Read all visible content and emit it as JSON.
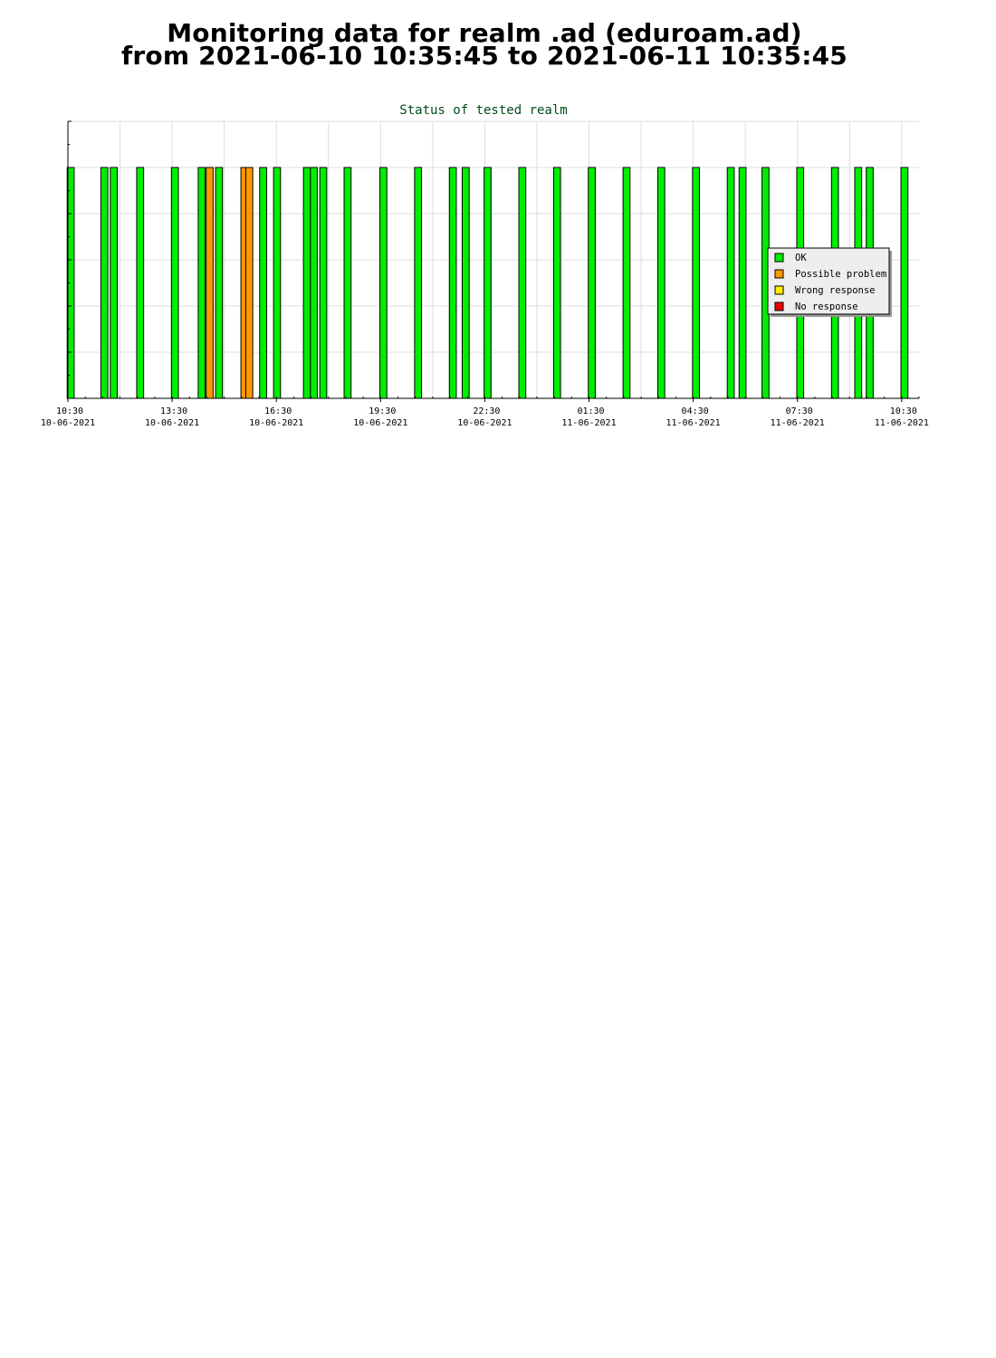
{
  "header": {
    "title_line1": "Monitoring data for realm .ad  (eduroam.ad)",
    "title_line2": "from 2021-06-10 10:35:45 to 2021-06-11 10:35:45"
  },
  "chart_data": {
    "type": "bar",
    "title": "Status of tested realm",
    "xlabel": "",
    "ylabel": "",
    "x_unit": "hours after 2021-06-10 10:30",
    "x_range": [
      0,
      24.5
    ],
    "ylim": [
      0,
      6
    ],
    "grid": true,
    "legend_position": "right",
    "x_ticks": [
      {
        "x": 0,
        "time": "10:30",
        "date": "10-06-2021"
      },
      {
        "x": 3,
        "time": "13:30",
        "date": "10-06-2021"
      },
      {
        "x": 6,
        "time": "16:30",
        "date": "10-06-2021"
      },
      {
        "x": 9,
        "time": "19:30",
        "date": "10-06-2021"
      },
      {
        "x": 12,
        "time": "22:30",
        "date": "10-06-2021"
      },
      {
        "x": 15,
        "time": "01:30",
        "date": "11-06-2021"
      },
      {
        "x": 18,
        "time": "04:30",
        "date": "11-06-2021"
      },
      {
        "x": 21,
        "time": "07:30",
        "date": "11-06-2021"
      },
      {
        "x": 24,
        "time": "10:30",
        "date": "11-06-2021"
      }
    ],
    "bar_width": 0.2,
    "series": [
      {
        "name": "OK",
        "color": "#00ee00",
        "values": [
          {
            "x": 0.08,
            "y": 5
          },
          {
            "x": 1.05,
            "y": 5
          },
          {
            "x": 1.32,
            "y": 5
          },
          {
            "x": 2.08,
            "y": 5
          },
          {
            "x": 3.08,
            "y": 5
          },
          {
            "x": 3.85,
            "y": 5
          },
          {
            "x": 4.35,
            "y": 5
          },
          {
            "x": 5.62,
            "y": 5
          },
          {
            "x": 6.02,
            "y": 5
          },
          {
            "x": 6.88,
            "y": 5
          },
          {
            "x": 7.08,
            "y": 5
          },
          {
            "x": 7.35,
            "y": 5
          },
          {
            "x": 8.05,
            "y": 5
          },
          {
            "x": 9.08,
            "y": 5
          },
          {
            "x": 10.08,
            "y": 5
          },
          {
            "x": 11.08,
            "y": 5
          },
          {
            "x": 11.45,
            "y": 5
          },
          {
            "x": 12.08,
            "y": 5
          },
          {
            "x": 13.08,
            "y": 5
          },
          {
            "x": 14.08,
            "y": 5
          },
          {
            "x": 15.08,
            "y": 5
          },
          {
            "x": 16.08,
            "y": 5
          },
          {
            "x": 17.08,
            "y": 5
          },
          {
            "x": 18.08,
            "y": 5
          },
          {
            "x": 19.08,
            "y": 5
          },
          {
            "x": 19.42,
            "y": 5
          },
          {
            "x": 20.08,
            "y": 5
          },
          {
            "x": 21.08,
            "y": 5
          },
          {
            "x": 22.08,
            "y": 5
          },
          {
            "x": 22.75,
            "y": 5
          },
          {
            "x": 23.08,
            "y": 5
          },
          {
            "x": 24.08,
            "y": 5
          }
        ]
      },
      {
        "name": "Possible problem",
        "color": "#ff9900",
        "values": [
          {
            "x": 4.08,
            "y": 5
          },
          {
            "x": 5.08,
            "y": 5
          },
          {
            "x": 5.22,
            "y": 5
          }
        ]
      },
      {
        "name": "Wrong response",
        "color": "#ffee00",
        "values": []
      },
      {
        "name": "No response",
        "color": "#ee0000",
        "values": []
      }
    ]
  }
}
